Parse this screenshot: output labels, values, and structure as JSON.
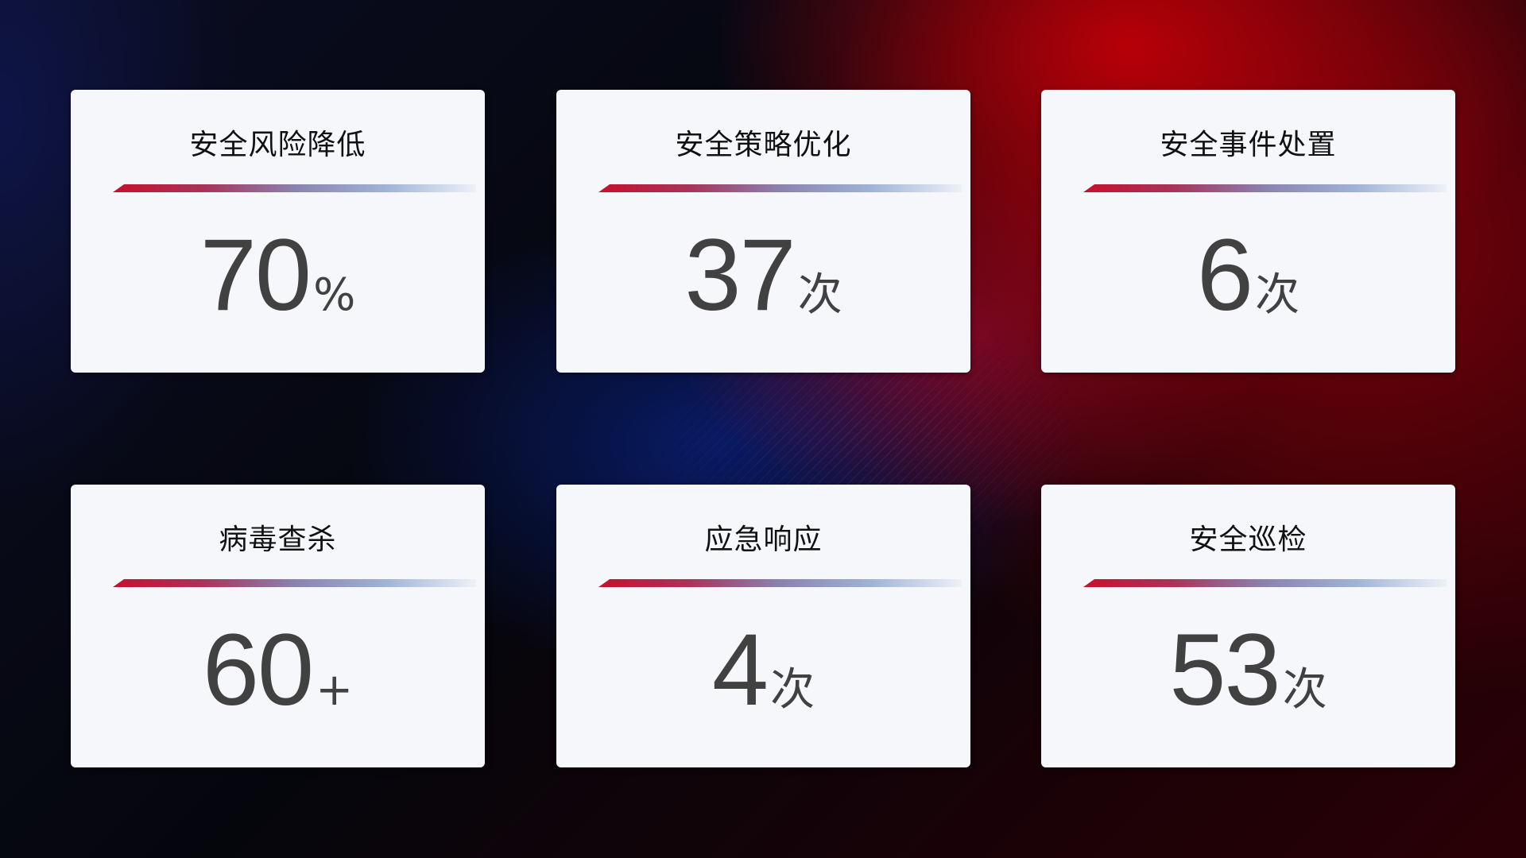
{
  "cards": [
    {
      "title": "安全风险降低",
      "value": "70",
      "unit": "%"
    },
    {
      "title": "安全策略优化",
      "value": "37",
      "unit": "次"
    },
    {
      "title": "安全事件处置",
      "value": "6",
      "unit": "次"
    },
    {
      "title": "病毒查杀",
      "value": "60",
      "unit": "+"
    },
    {
      "title": "应急响应",
      "value": "4",
      "unit": "次"
    },
    {
      "title": "安全巡检",
      "value": "53",
      "unit": "次"
    }
  ],
  "colors": {
    "accent_red": "#c8102e",
    "accent_blue": "#8a9fd0",
    "card_bg": "#f5f7fb",
    "value_text": "#414141"
  }
}
